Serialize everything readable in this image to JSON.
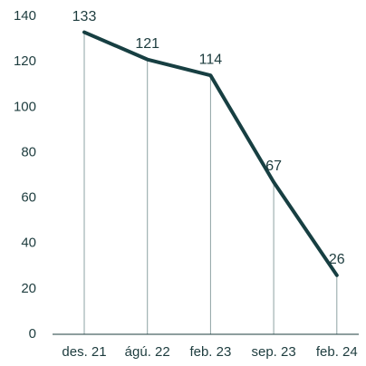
{
  "chart_data": {
    "type": "line",
    "categories": [
      "des. 21",
      "ágú. 22",
      "feb. 23",
      "sep. 23",
      "feb. 24"
    ],
    "values": [
      133,
      121,
      114,
      67,
      26
    ],
    "color": "#173f42",
    "ylim": [
      0,
      140
    ],
    "yticks": [
      0,
      20,
      40,
      60,
      80,
      100,
      120,
      140
    ],
    "grid": false
  }
}
